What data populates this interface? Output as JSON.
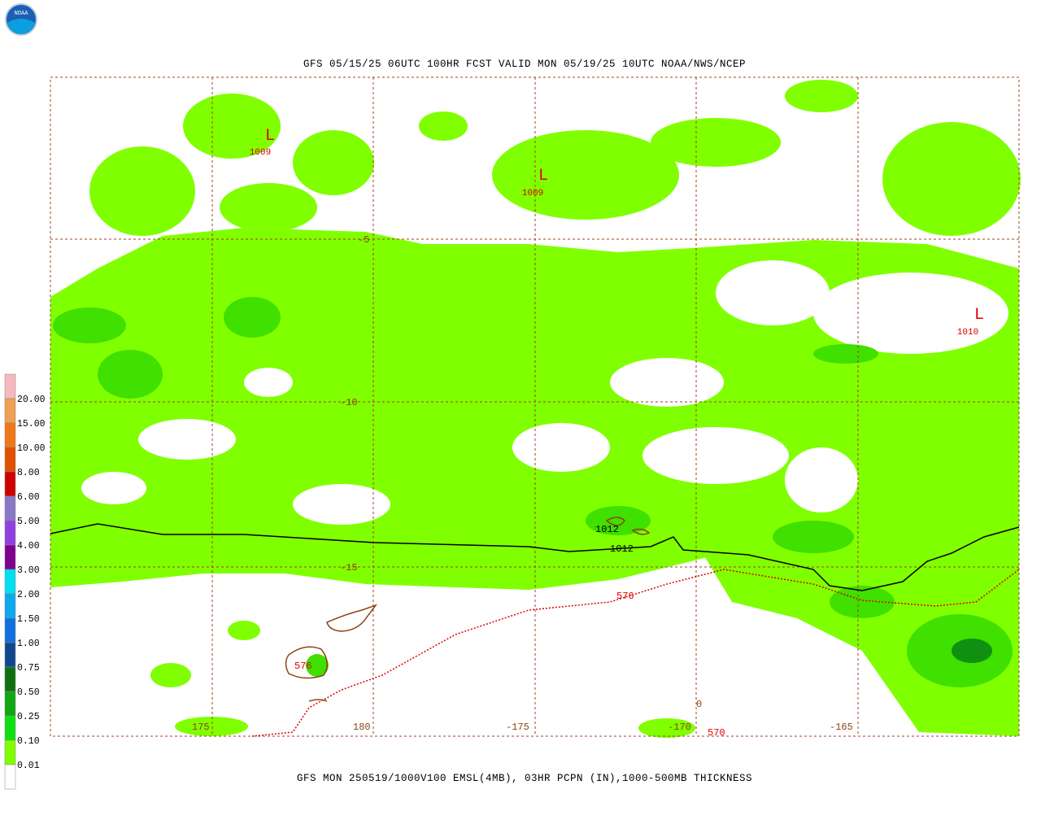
{
  "logo": "NOAA",
  "title": "GFS 05/15/25 06UTC 100HR FCST VALID MON 05/19/25 10UTC NOAA/NWS/NCEP",
  "caption": "GFS MON 250519/1000V100 EMSL(4MB), 03HR PCPN (IN),1000-500MB THICKNESS",
  "legend": {
    "labels": [
      "20.00",
      "15.00",
      "10.00",
      "8.00",
      "6.00",
      "5.00",
      "4.00",
      "3.00",
      "2.00",
      "1.50",
      "1.00",
      "0.75",
      "0.50",
      "0.25",
      "0.10",
      "0.01"
    ],
    "colors": [
      "#f8b8c0",
      "#f0a050",
      "#f07818",
      "#e05000",
      "#d00000",
      "#8878c8",
      "#9040e0",
      "#800090",
      "#00e0f0",
      "#10a8f0",
      "#1070e0",
      "#104890",
      "#107010",
      "#10a810",
      "#10e010",
      "#80ff00",
      "#ffffff"
    ]
  },
  "grid": {
    "lat_labels": [
      "-5",
      "-10",
      "-15"
    ],
    "lon_labels": [
      "175",
      "180",
      "-175",
      "-170",
      "-165"
    ]
  },
  "pressure_centers": [
    {
      "symbol": "L",
      "value": "1009"
    },
    {
      "symbol": "L",
      "value": "1009"
    },
    {
      "symbol": "L",
      "value": "1010"
    }
  ],
  "isobar_labels": [
    "1012",
    "1012"
  ],
  "thickness_labels": [
    "576",
    "576",
    "570"
  ],
  "other_labels": [
    "0"
  ]
}
